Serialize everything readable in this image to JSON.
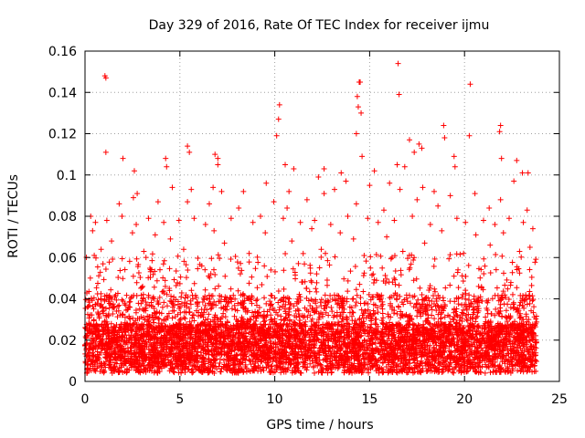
{
  "chart_data": {
    "type": "scatter",
    "title": "Day 329 of 2016, Rate Of TEC Index for receiver ijmu",
    "xlabel": "GPS time / hours",
    "ylabel": "ROTI / TECUs",
    "xlim": [
      0,
      25
    ],
    "ylim": [
      0,
      0.16
    ],
    "xticks": [
      0,
      5,
      10,
      15,
      20,
      25
    ],
    "xtick_labels": [
      "0",
      "5",
      "10",
      "15",
      "20",
      "25"
    ],
    "yticks": [
      0,
      0.02,
      0.04,
      0.06,
      0.08,
      0.1,
      0.12,
      0.14,
      0.16
    ],
    "ytick_labels": [
      "0",
      "0.02",
      "0.04",
      "0.06",
      "0.08",
      "0.1",
      "0.12",
      "0.14",
      "0.16"
    ],
    "grid": true,
    "marker": "plus",
    "color": "#ff0000",
    "data_x_range": [
      0,
      23.8
    ],
    "series": [
      {
        "name": "ROTI",
        "points": [
          [
            1.05,
            0.148
          ],
          [
            1.1,
            0.147
          ],
          [
            16.5,
            0.154
          ],
          [
            16.55,
            0.139
          ],
          [
            20.3,
            0.144
          ],
          [
            14.45,
            0.145
          ],
          [
            14.5,
            0.145
          ],
          [
            14.35,
            0.138
          ],
          [
            10.25,
            0.134
          ],
          [
            10.2,
            0.127
          ],
          [
            14.4,
            0.133
          ],
          [
            14.55,
            0.13
          ],
          [
            18.9,
            0.124
          ],
          [
            18.95,
            0.118
          ],
          [
            21.9,
            0.124
          ],
          [
            21.85,
            0.121
          ],
          [
            20.25,
            0.119
          ],
          [
            14.3,
            0.12
          ],
          [
            10.1,
            0.119
          ],
          [
            1.1,
            0.111
          ],
          [
            17.1,
            0.117
          ],
          [
            17.6,
            0.115
          ],
          [
            17.75,
            0.113
          ],
          [
            17.35,
            0.111
          ],
          [
            5.4,
            0.114
          ],
          [
            5.5,
            0.111
          ],
          [
            4.25,
            0.108
          ],
          [
            6.85,
            0.11
          ],
          [
            7.0,
            0.108
          ],
          [
            2.0,
            0.108
          ],
          [
            7.0,
            0.105
          ],
          [
            16.45,
            0.105
          ],
          [
            14.6,
            0.109
          ],
          [
            12.6,
            0.103
          ],
          [
            19.45,
            0.109
          ],
          [
            22.75,
            0.107
          ],
          [
            15.25,
            0.102
          ],
          [
            2.6,
            0.102
          ],
          [
            4.3,
            0.104
          ],
          [
            16.85,
            0.104
          ],
          [
            21.95,
            0.108
          ],
          [
            23.35,
            0.101
          ],
          [
            23.05,
            0.101
          ],
          [
            13.5,
            0.101
          ],
          [
            11.0,
            0.103
          ],
          [
            10.55,
            0.105
          ],
          [
            19.5,
            0.104
          ],
          [
            12.3,
            0.099
          ],
          [
            21.9,
            0.088
          ],
          [
            2.75,
            0.091
          ],
          [
            2.55,
            0.089
          ],
          [
            4.6,
            0.094
          ],
          [
            5.6,
            0.093
          ],
          [
            6.75,
            0.094
          ],
          [
            7.2,
            0.092
          ],
          [
            8.35,
            0.092
          ],
          [
            9.55,
            0.096
          ],
          [
            10.75,
            0.092
          ],
          [
            12.6,
            0.091
          ],
          [
            13.15,
            0.093
          ],
          [
            13.75,
            0.097
          ],
          [
            15.0,
            0.095
          ],
          [
            16.05,
            0.096
          ],
          [
            16.6,
            0.093
          ],
          [
            17.8,
            0.094
          ],
          [
            18.4,
            0.092
          ],
          [
            19.25,
            0.09
          ],
          [
            20.55,
            0.091
          ],
          [
            22.6,
            0.097
          ],
          [
            23.3,
            0.083
          ],
          [
            1.8,
            0.086
          ],
          [
            3.85,
            0.087
          ],
          [
            5.4,
            0.087
          ],
          [
            6.55,
            0.086
          ],
          [
            8.1,
            0.084
          ],
          [
            9.95,
            0.087
          ],
          [
            10.65,
            0.084
          ],
          [
            11.7,
            0.088
          ],
          [
            14.3,
            0.086
          ],
          [
            15.75,
            0.083
          ],
          [
            17.5,
            0.088
          ],
          [
            18.6,
            0.085
          ],
          [
            21.3,
            0.084
          ],
          [
            0.3,
            0.08
          ],
          [
            0.55,
            0.077
          ],
          [
            1.15,
            0.078
          ],
          [
            1.95,
            0.08
          ],
          [
            2.7,
            0.076
          ],
          [
            3.35,
            0.079
          ],
          [
            4.15,
            0.077
          ],
          [
            4.95,
            0.078
          ],
          [
            5.75,
            0.079
          ],
          [
            6.35,
            0.076
          ],
          [
            7.7,
            0.079
          ],
          [
            8.85,
            0.077
          ],
          [
            9.25,
            0.08
          ],
          [
            10.45,
            0.079
          ],
          [
            11.35,
            0.077
          ],
          [
            12.1,
            0.078
          ],
          [
            12.95,
            0.076
          ],
          [
            13.85,
            0.08
          ],
          [
            14.9,
            0.079
          ],
          [
            15.45,
            0.077
          ],
          [
            16.3,
            0.078
          ],
          [
            17.25,
            0.08
          ],
          [
            18.2,
            0.076
          ],
          [
            19.6,
            0.079
          ],
          [
            20.05,
            0.077
          ],
          [
            21.0,
            0.078
          ],
          [
            21.6,
            0.076
          ],
          [
            22.35,
            0.079
          ],
          [
            23.1,
            0.077
          ],
          [
            23.6,
            0.074
          ],
          [
            0.4,
            0.073
          ],
          [
            2.5,
            0.072
          ],
          [
            3.7,
            0.071
          ],
          [
            6.8,
            0.073
          ],
          [
            9.5,
            0.072
          ],
          [
            11.95,
            0.074
          ],
          [
            13.45,
            0.072
          ],
          [
            15.9,
            0.07
          ],
          [
            18.8,
            0.073
          ],
          [
            20.6,
            0.071
          ],
          [
            22.05,
            0.072
          ],
          [
            1.4,
            0.068
          ],
          [
            4.5,
            0.069
          ],
          [
            7.35,
            0.067
          ],
          [
            10.9,
            0.068
          ],
          [
            14.15,
            0.069
          ],
          [
            17.9,
            0.067
          ],
          [
            21.35,
            0.066
          ],
          [
            23.45,
            0.065
          ],
          [
            0.85,
            0.064
          ],
          [
            3.1,
            0.063
          ],
          [
            5.2,
            0.064
          ],
          [
            8.65,
            0.062
          ],
          [
            12.45,
            0.064
          ],
          [
            16.75,
            0.063
          ],
          [
            19.95,
            0.062
          ],
          [
            22.9,
            0.063
          ]
        ]
      }
    ]
  }
}
